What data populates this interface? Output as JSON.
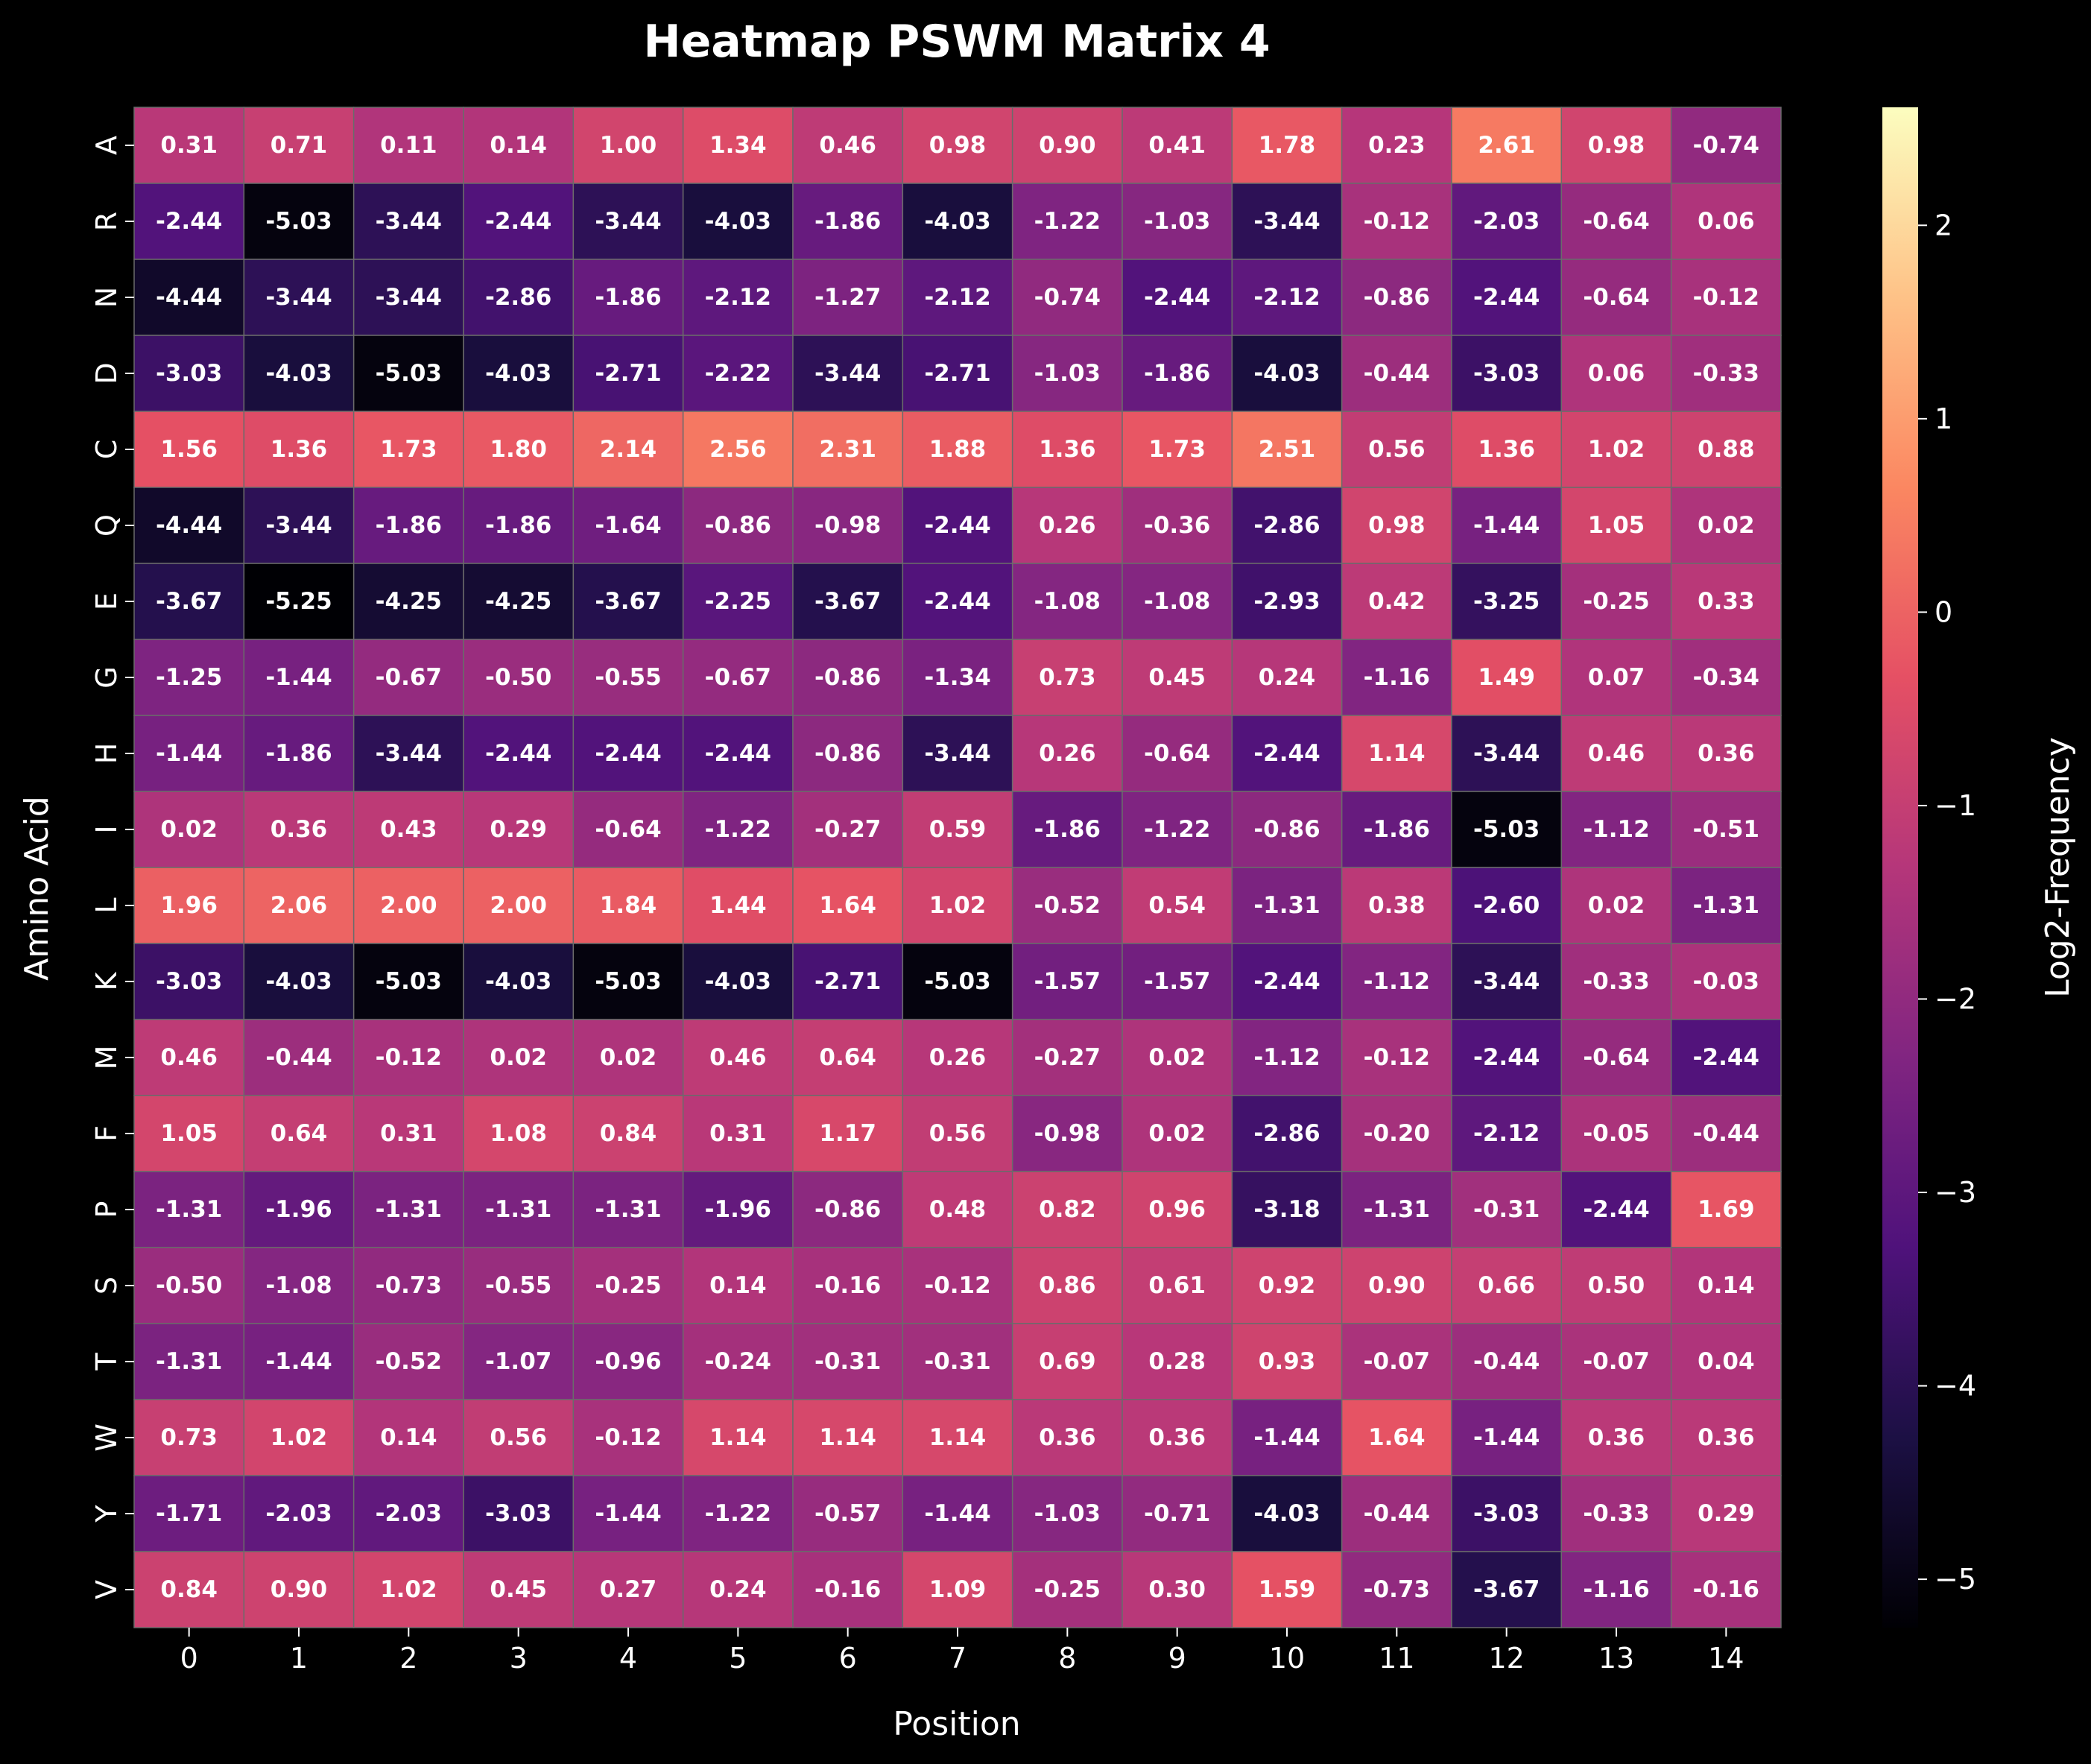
{
  "chart_data": {
    "type": "heatmap",
    "title": "Heatmap PSWM Matrix 4",
    "xlabel": "Position",
    "ylabel": "Amino Acid",
    "colorbar_label": "Log2-Frequency",
    "colormap": "magma",
    "x_categories": [
      "0",
      "1",
      "2",
      "3",
      "4",
      "5",
      "6",
      "7",
      "8",
      "9",
      "10",
      "11",
      "12",
      "13",
      "14"
    ],
    "y_categories": [
      "A",
      "R",
      "N",
      "D",
      "C",
      "Q",
      "E",
      "G",
      "H",
      "I",
      "L",
      "K",
      "M",
      "F",
      "P",
      "S",
      "T",
      "W",
      "Y",
      "V"
    ],
    "value_range": [
      -5.25,
      2.61
    ],
    "colorbar_ticks": [
      "2",
      "1",
      "0",
      "−1",
      "−2",
      "−3",
      "−4",
      "−5"
    ],
    "colorbar_tick_values": [
      2,
      1,
      0,
      -1,
      -2,
      -3,
      -4,
      -5
    ],
    "values": [
      [
        0.31,
        0.71,
        0.11,
        0.14,
        1.0,
        1.34,
        0.46,
        0.98,
        0.9,
        0.41,
        1.78,
        0.23,
        2.61,
        0.98,
        -0.74
      ],
      [
        -2.44,
        -5.03,
        -3.44,
        -2.44,
        -3.44,
        -4.03,
        -1.86,
        -4.03,
        -1.22,
        -1.03,
        -3.44,
        -0.12,
        -2.03,
        -0.64,
        0.06
      ],
      [
        -4.44,
        -3.44,
        -3.44,
        -2.86,
        -1.86,
        -2.12,
        -1.27,
        -2.12,
        -0.74,
        -2.44,
        -2.12,
        -0.86,
        -2.44,
        -0.64,
        -0.12
      ],
      [
        -3.03,
        -4.03,
        -5.03,
        -4.03,
        -2.71,
        -2.22,
        -3.44,
        -2.71,
        -1.03,
        -1.86,
        -4.03,
        -0.44,
        -3.03,
        0.06,
        -0.33
      ],
      [
        1.56,
        1.36,
        1.73,
        1.8,
        2.14,
        2.56,
        2.31,
        1.88,
        1.36,
        1.73,
        2.51,
        0.56,
        1.36,
        1.02,
        0.88
      ],
      [
        -4.44,
        -3.44,
        -1.86,
        -1.86,
        -1.64,
        -0.86,
        -0.98,
        -2.44,
        0.26,
        -0.36,
        -2.86,
        0.98,
        -1.44,
        1.05,
        0.02
      ],
      [
        -3.67,
        -5.25,
        -4.25,
        -4.25,
        -3.67,
        -2.25,
        -3.67,
        -2.44,
        -1.08,
        -1.08,
        -2.93,
        0.42,
        -3.25,
        -0.25,
        0.33
      ],
      [
        -1.25,
        -1.44,
        -0.67,
        -0.5,
        -0.55,
        -0.67,
        -0.86,
        -1.34,
        0.73,
        0.45,
        0.24,
        -1.16,
        1.49,
        0.07,
        -0.34
      ],
      [
        -1.44,
        -1.86,
        -3.44,
        -2.44,
        -2.44,
        -2.44,
        -0.86,
        -3.44,
        0.26,
        -0.64,
        -2.44,
        1.14,
        -3.44,
        0.46,
        0.36
      ],
      [
        0.02,
        0.36,
        0.43,
        0.29,
        -0.64,
        -1.22,
        -0.27,
        0.59,
        -1.86,
        -1.22,
        -0.86,
        -1.86,
        -5.03,
        -1.12,
        -0.51
      ],
      [
        1.96,
        2.06,
        2.0,
        2.0,
        1.84,
        1.44,
        1.64,
        1.02,
        -0.52,
        0.54,
        -1.31,
        0.38,
        -2.6,
        0.02,
        -1.31
      ],
      [
        -3.03,
        -4.03,
        -5.03,
        -4.03,
        -5.03,
        -4.03,
        -2.71,
        -5.03,
        -1.57,
        -1.57,
        -2.44,
        -1.12,
        -3.44,
        -0.33,
        -0.03
      ],
      [
        0.46,
        -0.44,
        -0.12,
        0.02,
        0.02,
        0.46,
        0.64,
        0.26,
        -0.27,
        0.02,
        -1.12,
        -0.12,
        -2.44,
        -0.64,
        -2.44
      ],
      [
        1.05,
        0.64,
        0.31,
        1.08,
        0.84,
        0.31,
        1.17,
        0.56,
        -0.98,
        0.02,
        -2.86,
        -0.2,
        -2.12,
        -0.05,
        -0.44
      ],
      [
        -1.31,
        -1.96,
        -1.31,
        -1.31,
        -1.31,
        -1.96,
        -0.86,
        0.48,
        0.82,
        0.96,
        -3.18,
        -1.31,
        -0.31,
        -2.44,
        1.69
      ],
      [
        -0.5,
        -1.08,
        -0.73,
        -0.55,
        -0.25,
        0.14,
        -0.16,
        -0.12,
        0.86,
        0.61,
        0.92,
        0.9,
        0.66,
        0.5,
        0.14
      ],
      [
        -1.31,
        -1.44,
        -0.52,
        -1.07,
        -0.96,
        -0.24,
        -0.31,
        -0.31,
        0.69,
        0.28,
        0.93,
        -0.07,
        -0.44,
        -0.07,
        0.04
      ],
      [
        0.73,
        1.02,
        0.14,
        0.56,
        -0.12,
        1.14,
        1.14,
        1.14,
        0.36,
        0.36,
        -1.44,
        1.64,
        -1.44,
        0.36,
        0.36
      ],
      [
        -1.71,
        -2.03,
        -2.03,
        -3.03,
        -1.44,
        -1.22,
        -0.57,
        -1.44,
        -1.03,
        -0.71,
        -4.03,
        -0.44,
        -3.03,
        -0.33,
        0.29
      ],
      [
        0.84,
        0.9,
        1.02,
        0.45,
        0.27,
        0.24,
        -0.16,
        1.09,
        -0.25,
        0.3,
        1.59,
        -0.73,
        -3.67,
        -1.16,
        -0.16
      ]
    ]
  }
}
